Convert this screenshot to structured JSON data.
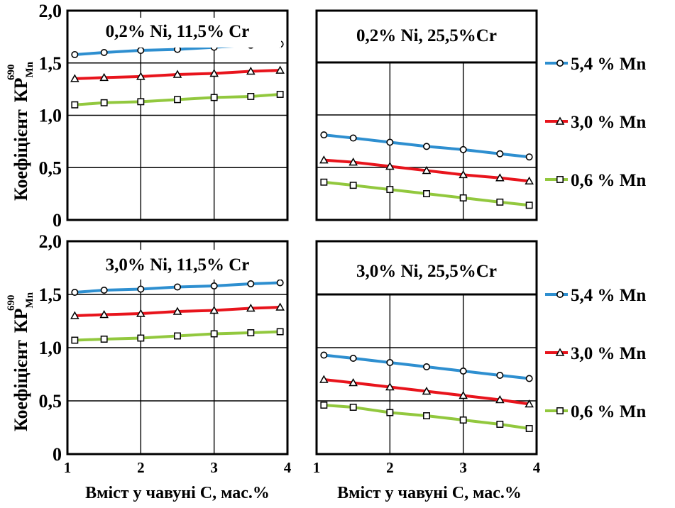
{
  "figure": {
    "ylabel_main": "Коефіцієнт",
    "ylabel_symbol": "КР",
    "ylabel_sub": "Mn",
    "ylabel_sup": "690",
    "xlabel": "Вміст у чавуні С, мас.%"
  },
  "colors": {
    "s54": "#2e8fd0",
    "s30": "#e8141c",
    "s06": "#92c83e"
  },
  "legend": [
    {
      "label": "5,4 % Mn",
      "marker": "circle",
      "color": "#2e8fd0"
    },
    {
      "label": "3,0 % Mn",
      "marker": "triangle",
      "color": "#e8141c"
    },
    {
      "label": "0,6 % Mn",
      "marker": "square",
      "color": "#92c83e"
    }
  ],
  "chart_data": [
    {
      "type": "line",
      "title": "0,2% Ni, 11,5% Cr",
      "x": [
        1.1,
        1.5,
        2.0,
        2.5,
        3.0,
        3.5,
        3.9
      ],
      "xlim": [
        1,
        4
      ],
      "ylim": [
        0,
        2
      ],
      "xticks": [
        "1",
        "2",
        "3",
        "4"
      ],
      "yticks": [
        "0",
        "0,5",
        "1,0",
        "1,5",
        "2,0"
      ],
      "grid": true,
      "series": [
        {
          "name": "5,4 % Mn",
          "values": [
            1.58,
            1.6,
            1.62,
            1.63,
            1.65,
            1.67,
            1.68
          ]
        },
        {
          "name": "3,0 % Mn",
          "values": [
            1.35,
            1.36,
            1.37,
            1.39,
            1.4,
            1.42,
            1.43
          ]
        },
        {
          "name": "0,6 % Mn",
          "values": [
            1.1,
            1.12,
            1.13,
            1.15,
            1.17,
            1.18,
            1.2
          ]
        }
      ]
    },
    {
      "type": "line",
      "title": "0,2% Ni,  25,5%Cr",
      "x": [
        1.1,
        1.5,
        2.0,
        2.5,
        3.0,
        3.5,
        3.9
      ],
      "xlim": [
        1,
        4
      ],
      "ylim": [
        0,
        1.5
      ],
      "xticks": [
        "1",
        "2",
        "3",
        "4"
      ],
      "grid": true,
      "series": [
        {
          "name": "5,4 % Mn",
          "values": [
            0.81,
            0.78,
            0.74,
            0.7,
            0.67,
            0.63,
            0.6
          ]
        },
        {
          "name": "3,0 % Mn",
          "values": [
            0.57,
            0.55,
            0.51,
            0.47,
            0.43,
            0.4,
            0.37
          ]
        },
        {
          "name": "0,6 % Mn",
          "values": [
            0.36,
            0.33,
            0.29,
            0.25,
            0.21,
            0.17,
            0.14
          ]
        }
      ]
    },
    {
      "type": "line",
      "title": "3,0% Ni, 11,5% Cr",
      "x": [
        1.1,
        1.5,
        2.0,
        2.5,
        3.0,
        3.5,
        3.9
      ],
      "xlim": [
        1,
        4
      ],
      "ylim": [
        0,
        2
      ],
      "xticks": [
        "1",
        "2",
        "3",
        "4"
      ],
      "yticks": [
        "0",
        "0,5",
        "1,0",
        "1,5",
        "2,0"
      ],
      "grid": true,
      "series": [
        {
          "name": "5,4 % Mn",
          "values": [
            1.52,
            1.54,
            1.55,
            1.57,
            1.58,
            1.6,
            1.61
          ]
        },
        {
          "name": "3,0 % Mn",
          "values": [
            1.3,
            1.31,
            1.32,
            1.34,
            1.35,
            1.37,
            1.38
          ]
        },
        {
          "name": "0,6 % Mn",
          "values": [
            1.07,
            1.08,
            1.09,
            1.11,
            1.13,
            1.14,
            1.15
          ]
        }
      ]
    },
    {
      "type": "line",
      "title": "3,0% Ni,  25,5%Cr",
      "x": [
        1.1,
        1.5,
        2.0,
        2.5,
        3.0,
        3.5,
        3.9
      ],
      "xlim": [
        1,
        4
      ],
      "ylim": [
        0,
        1.5
      ],
      "xticks": [
        "1",
        "2",
        "3",
        "4"
      ],
      "grid": true,
      "series": [
        {
          "name": "5,4 % Mn",
          "values": [
            0.93,
            0.9,
            0.86,
            0.82,
            0.78,
            0.74,
            0.71
          ]
        },
        {
          "name": "3,0 % Mn",
          "values": [
            0.7,
            0.67,
            0.63,
            0.59,
            0.55,
            0.51,
            0.47
          ]
        },
        {
          "name": "0,6 % Mn",
          "values": [
            0.46,
            0.44,
            0.39,
            0.36,
            0.32,
            0.28,
            0.24
          ]
        }
      ]
    }
  ]
}
